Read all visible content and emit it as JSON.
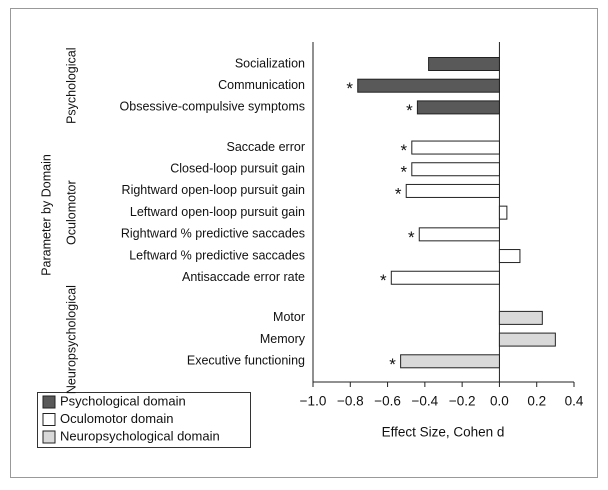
{
  "chart_data": {
    "type": "grouped-hbar",
    "ylabel": "Parameter by Domain",
    "xlabel": "Effect Size, Cohen d",
    "xlim": [
      -1.0,
      0.4
    ],
    "xticks": [
      {
        "value": -1.0,
        "label": "−1.0"
      },
      {
        "value": -0.8,
        "label": "−0.8"
      },
      {
        "value": -0.6,
        "label": "−0.6"
      },
      {
        "value": -0.4,
        "label": "−0.4"
      },
      {
        "value": -0.2,
        "label": "−0.2"
      },
      {
        "value": 0.0,
        "label": "0.0"
      },
      0.2,
      0.4
    ],
    "legend": "bottom-left",
    "series": [
      {
        "name": "Psychological domain",
        "group": "Psychological",
        "color": "#595959",
        "categories": [
          "Socialization",
          "Communication",
          "Obsessive-compulsive symptoms"
        ],
        "values": [
          -0.38,
          -0.76,
          -0.44
        ],
        "markers": [
          null,
          "*",
          "*"
        ]
      },
      {
        "name": "Oculomotor domain",
        "group": "Oculomotor",
        "color": "#ffffff",
        "categories": [
          "Saccade error",
          "Closed-loop pursuit gain",
          "Rightward open-loop pursuit gain",
          "Leftward open-loop pursuit gain",
          "Rightward % predictive saccades",
          "Leftward % predictive saccades",
          "Antisaccade error rate"
        ],
        "values": [
          -0.47,
          -0.47,
          -0.5,
          0.04,
          -0.43,
          0.11,
          -0.58
        ],
        "markers": [
          "*",
          "*",
          "*",
          null,
          "*",
          null,
          "*"
        ]
      },
      {
        "name": "Neuropsychological domain",
        "group": "Neuropsychological",
        "color": "#d9d9d9",
        "categories": [
          "Motor",
          "Memory",
          "Executive functioning"
        ],
        "values": [
          0.23,
          0.3,
          -0.53
        ],
        "markers": [
          null,
          null,
          "*"
        ]
      }
    ]
  }
}
